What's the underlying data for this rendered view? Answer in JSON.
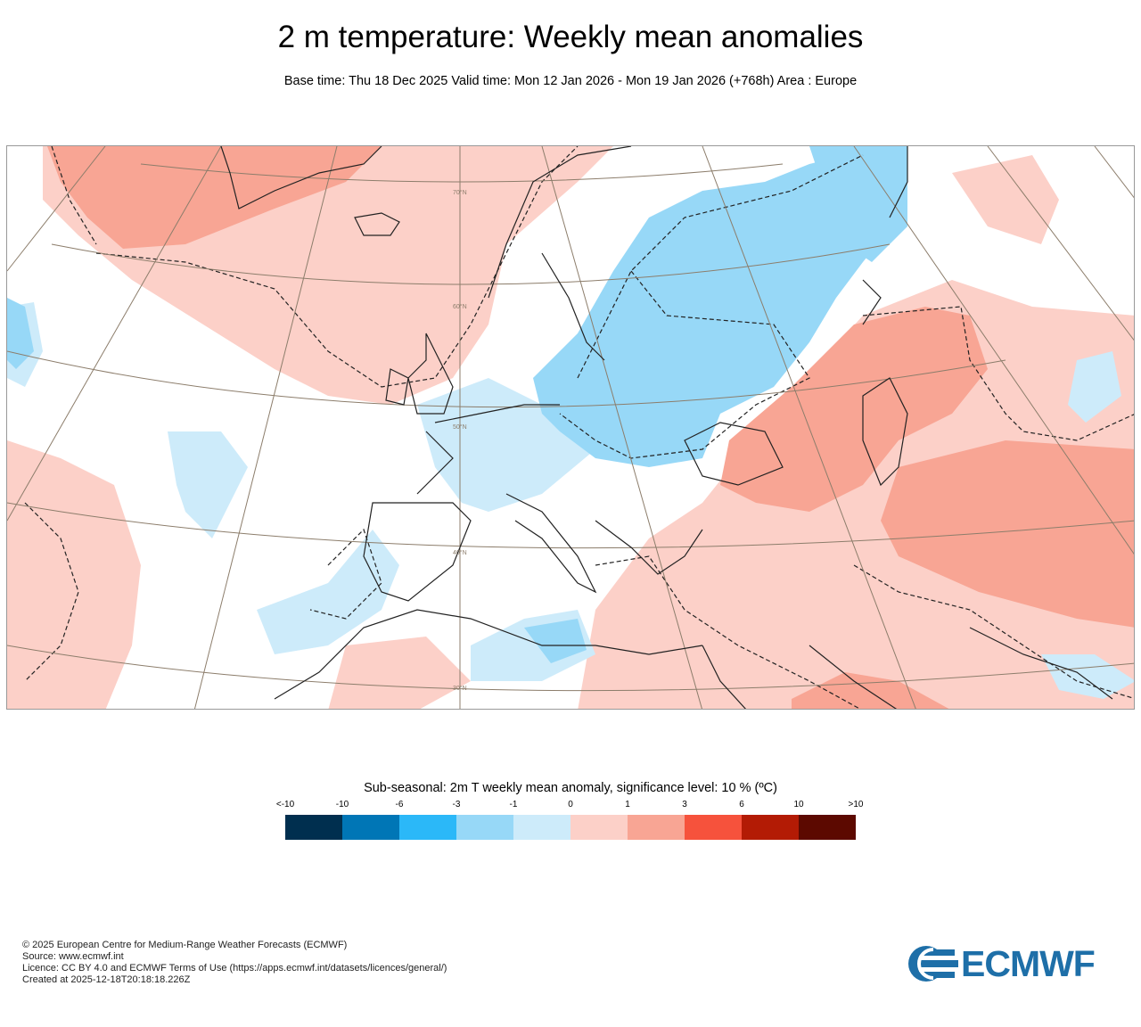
{
  "header": {
    "title": "2 m temperature: Weekly mean anomalies",
    "subtitle": "Base time: Thu 18 Dec 2025 Valid time: Mon 12 Jan 2026 - Mon 19 Jan 2026 (+768h) Area : Europe"
  },
  "map": {
    "latitude_labels": [
      "70°N",
      "60°N",
      "50°N",
      "40°N",
      "30°N"
    ],
    "colors": {
      "warm1": "#fcd0c8",
      "warm2": "#f8a594",
      "cold1": "#cdebfa",
      "cold2": "#97d8f7",
      "grid": "#8c7d6b",
      "coast": "#222222"
    }
  },
  "legend": {
    "title": "Sub-seasonal: 2m T weekly mean anomaly, significance level: 10 % (ºC)",
    "tick_labels": [
      "<-10",
      "-10",
      "-6",
      "-3",
      "-1",
      "0",
      "1",
      "3",
      "6",
      "10",
      ">10"
    ],
    "bins": [
      {
        "range": "< -10",
        "color": "#002f4f"
      },
      {
        "range": "-10 to -6",
        "color": "#0076b6"
      },
      {
        "range": "-6 to -3",
        "color": "#2bb8f8"
      },
      {
        "range": "-3 to -1",
        "color": "#97d8f7"
      },
      {
        "range": "-1 to 0",
        "color": "#cdebfa"
      },
      {
        "range": "0 to 1",
        "color": "#fcd0c8"
      },
      {
        "range": "1 to 3",
        "color": "#f8a594"
      },
      {
        "range": "3 to 6",
        "color": "#f6523c"
      },
      {
        "range": "6 to 10",
        "color": "#b31b05"
      },
      {
        "range": "> 10",
        "color": "#5c0900"
      }
    ]
  },
  "footer": {
    "copyright": "© 2025 European Centre for Medium-Range Weather Forecasts (ECMWF)",
    "source": "Source: www.ecmwf.int",
    "licence": "Licence: CC BY 4.0 and ECMWF Terms of Use (https://apps.ecmwf.int/datasets/licences/general/)",
    "created": "Created at 2025-12-18T20:18:18.226Z"
  },
  "logo": {
    "text": "ECMWF",
    "color": "#1e6fa8"
  }
}
